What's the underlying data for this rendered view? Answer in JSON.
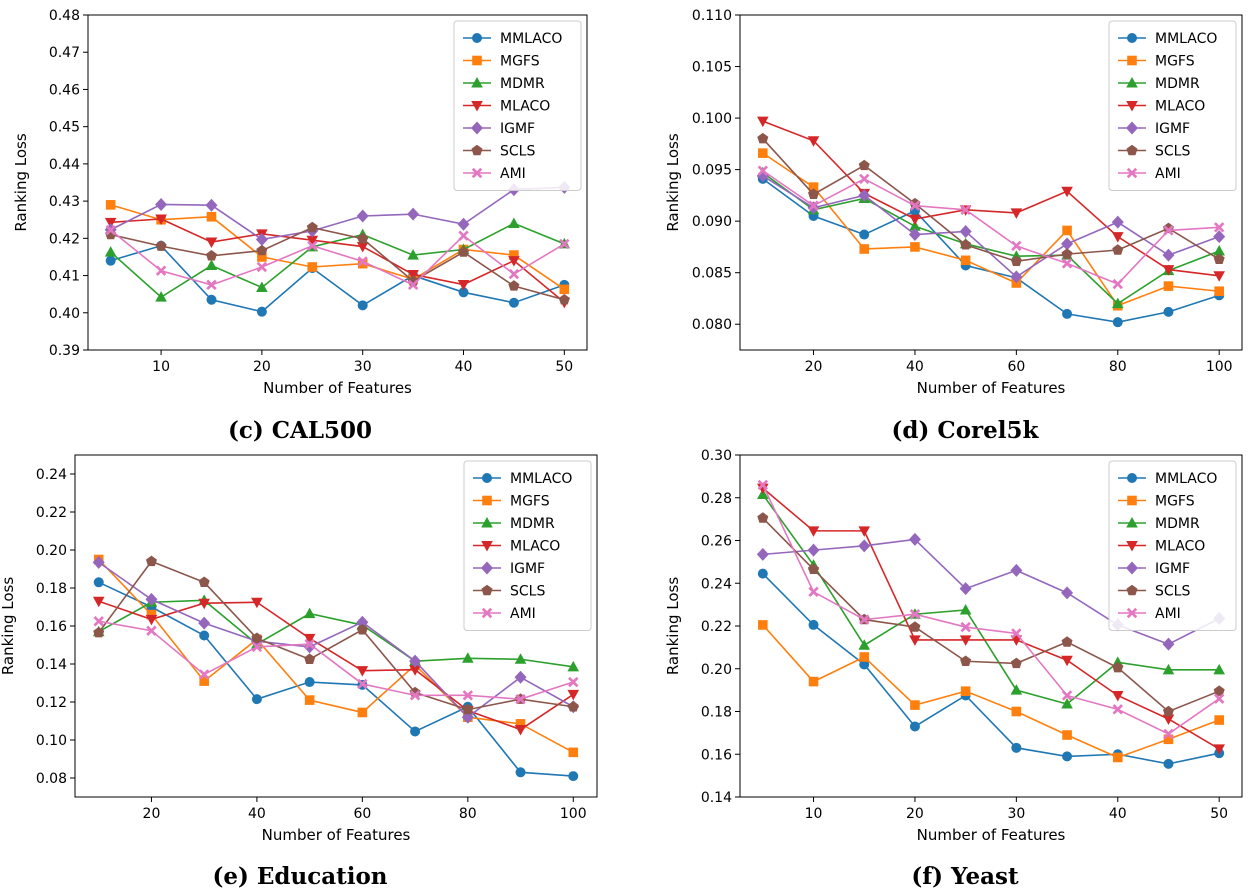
{
  "figure": {
    "legend_position": "upper right",
    "grid": false,
    "series_colors": {
      "MMLACO": "#1f77b4",
      "MGFS": "#ff7f0e",
      "MDMR": "#2ca02c",
      "MLACO": "#d62728",
      "IGMF": "#9467bd",
      "SCLS": "#8c564b",
      "AMI": "#e377c2"
    },
    "series_markers": {
      "MMLACO": "circle",
      "MGFS": "square",
      "MDMR": "triangle-up",
      "MLACO": "triangle-down",
      "IGMF": "diamond",
      "SCLS": "pentagon",
      "AMI": "x-filled"
    }
  },
  "chart_data": [
    {
      "type": "line",
      "caption": "(c) CAL500",
      "xlabel": "Number of Features",
      "ylabel": "Ranking Loss",
      "xlim": [
        2.75,
        52.25
      ],
      "ylim": [
        0.39,
        0.48
      ],
      "xticks": [
        10,
        20,
        30,
        40,
        50
      ],
      "yticks": [
        0.39,
        0.4,
        0.41,
        0.42,
        0.43,
        0.44,
        0.45,
        0.46,
        0.47,
        0.48
      ],
      "ytick_labels": [
        "0.39",
        "0.40",
        "0.41",
        "0.42",
        "0.43",
        "0.44",
        "0.45",
        "0.46",
        "0.47",
        "0.48"
      ],
      "x": [
        5,
        10,
        15,
        20,
        25,
        30,
        35,
        40,
        45,
        50
      ],
      "series": [
        {
          "name": "MMLACO",
          "values": [
            0.414,
            0.418,
            0.4035,
            0.4003,
            0.412,
            0.402,
            0.41,
            0.4055,
            0.4027,
            0.4075
          ]
        },
        {
          "name": "MGFS",
          "values": [
            0.429,
            0.425,
            0.4258,
            0.415,
            0.4123,
            0.4132,
            0.409,
            0.417,
            0.4155,
            0.4063
          ]
        },
        {
          "name": "MDMR",
          "values": [
            0.4163,
            0.4042,
            0.4127,
            0.4068,
            0.4177,
            0.421,
            0.4155,
            0.417,
            0.424,
            0.4185
          ]
        },
        {
          "name": "MLACO",
          "values": [
            0.4243,
            0.4252,
            0.419,
            0.4212,
            0.4195,
            0.4178,
            0.4103,
            0.4076,
            0.414,
            0.4028
          ]
        },
        {
          "name": "IGMF",
          "values": [
            0.4223,
            0.4291,
            0.4289,
            0.4197,
            0.422,
            0.426,
            0.4265,
            0.4238,
            0.4331,
            0.4337
          ]
        },
        {
          "name": "SCLS",
          "values": [
            0.421,
            0.4179,
            0.4153,
            0.4167,
            0.4229,
            0.4199,
            0.4085,
            0.4163,
            0.4072,
            0.4035
          ]
        },
        {
          "name": "AMI",
          "values": [
            0.4222,
            0.4113,
            0.4075,
            0.4123,
            0.418,
            0.4138,
            0.4075,
            0.4207,
            0.4104,
            0.4185
          ]
        }
      ]
    },
    {
      "type": "line",
      "caption": "(d) Corel5k",
      "xlabel": "Number of Features",
      "ylabel": "Ranking Loss",
      "xlim": [
        5.5,
        104.5
      ],
      "ylim": [
        0.0775,
        0.11
      ],
      "xticks": [
        20,
        40,
        60,
        80,
        100
      ],
      "yticks": [
        0.08,
        0.085,
        0.09,
        0.095,
        0.1,
        0.105,
        0.11
      ],
      "ytick_labels": [
        "0.080",
        "0.085",
        "0.090",
        "0.095",
        "0.100",
        "0.105",
        "0.110"
      ],
      "x": [
        10,
        20,
        30,
        40,
        50,
        60,
        70,
        80,
        90,
        100
      ],
      "series": [
        {
          "name": "MMLACO",
          "values": [
            0.0941,
            0.0905,
            0.0887,
            0.091,
            0.0857,
            0.0845,
            0.081,
            0.0802,
            0.0812,
            0.0828
          ]
        },
        {
          "name": "MGFS",
          "values": [
            0.0966,
            0.0933,
            0.0873,
            0.0875,
            0.0862,
            0.084,
            0.0891,
            0.0818,
            0.0837,
            0.0832
          ]
        },
        {
          "name": "MDMR",
          "values": [
            0.0947,
            0.0911,
            0.0922,
            0.0895,
            0.0878,
            0.0866,
            0.0867,
            0.082,
            0.0852,
            0.0871
          ]
        },
        {
          "name": "MLACO",
          "values": [
            0.0997,
            0.0978,
            0.0927,
            0.0902,
            0.0911,
            0.0908,
            0.0929,
            0.0885,
            0.0853,
            0.0847
          ]
        },
        {
          "name": "IGMF",
          "values": [
            0.0944,
            0.0913,
            0.0925,
            0.0887,
            0.089,
            0.0846,
            0.0878,
            0.0899,
            0.0867,
            0.0885
          ]
        },
        {
          "name": "SCLS",
          "values": [
            0.098,
            0.0926,
            0.0954,
            0.0917,
            0.0877,
            0.0861,
            0.0868,
            0.0872,
            0.0893,
            0.0863
          ]
        },
        {
          "name": "AMI",
          "values": [
            0.0949,
            0.0915,
            0.0941,
            0.0915,
            0.0911,
            0.0876,
            0.0859,
            0.0839,
            0.0891,
            0.0894
          ]
        }
      ]
    },
    {
      "type": "line",
      "caption": "(e) Education",
      "xlabel": "Number of Features",
      "ylabel": "Ranking Loss",
      "xlim": [
        5.5,
        104.5
      ],
      "ylim": [
        0.07,
        0.25
      ],
      "xticks": [
        20,
        40,
        60,
        80,
        100
      ],
      "yticks": [
        0.08,
        0.1,
        0.12,
        0.14,
        0.16,
        0.18,
        0.2,
        0.22,
        0.24
      ],
      "ytick_labels": [
        "0.08",
        "0.10",
        "0.12",
        "0.14",
        "0.16",
        "0.18",
        "0.20",
        "0.22",
        "0.24"
      ],
      "x": [
        10,
        20,
        30,
        40,
        50,
        60,
        70,
        80,
        90,
        100
      ],
      "series": [
        {
          "name": "MMLACO",
          "values": [
            0.183,
            0.17,
            0.155,
            0.1215,
            0.1305,
            0.129,
            0.1045,
            0.1175,
            0.083,
            0.081
          ]
        },
        {
          "name": "MGFS",
          "values": [
            0.195,
            0.166,
            0.131,
            0.153,
            0.121,
            0.1145,
            0.1395,
            0.112,
            0.1085,
            0.0935
          ]
        },
        {
          "name": "MDMR",
          "values": [
            0.157,
            0.1725,
            0.1735,
            0.1505,
            0.1665,
            0.1605,
            0.1415,
            0.143,
            0.1425,
            0.1385
          ]
        },
        {
          "name": "MLACO",
          "values": [
            0.173,
            0.1635,
            0.172,
            0.1725,
            0.1535,
            0.1365,
            0.137,
            0.1155,
            0.1055,
            0.124
          ]
        },
        {
          "name": "IGMF",
          "values": [
            0.1935,
            0.174,
            0.1615,
            0.152,
            0.149,
            0.162,
            0.1415,
            0.112,
            0.133,
            0.1175
          ]
        },
        {
          "name": "SCLS",
          "values": [
            0.1565,
            0.194,
            0.183,
            0.1535,
            0.1425,
            0.158,
            0.125,
            0.116,
            0.1215,
            0.1175
          ]
        },
        {
          "name": "AMI",
          "values": [
            0.1625,
            0.1575,
            0.1345,
            0.149,
            0.1505,
            0.1295,
            0.1235,
            0.1235,
            0.1215,
            0.1305
          ]
        }
      ]
    },
    {
      "type": "line",
      "caption": "(f) Yeast",
      "xlabel": "Number of Features",
      "ylabel": "Ranking Loss",
      "xlim": [
        2.75,
        52.25
      ],
      "ylim": [
        0.14,
        0.3
      ],
      "xticks": [
        10,
        20,
        30,
        40,
        50
      ],
      "yticks": [
        0.14,
        0.16,
        0.18,
        0.2,
        0.22,
        0.24,
        0.26,
        0.28,
        0.3
      ],
      "ytick_labels": [
        "0.14",
        "0.16",
        "0.18",
        "0.20",
        "0.22",
        "0.24",
        "0.26",
        "0.28",
        "0.30"
      ],
      "x": [
        5,
        10,
        15,
        20,
        25,
        30,
        35,
        40,
        45,
        50
      ],
      "series": [
        {
          "name": "MMLACO",
          "values": [
            0.2445,
            0.2205,
            0.202,
            0.173,
            0.1875,
            0.163,
            0.159,
            0.16,
            0.1555,
            0.1605
          ]
        },
        {
          "name": "MGFS",
          "values": [
            0.2205,
            0.194,
            0.2055,
            0.183,
            0.1895,
            0.18,
            0.169,
            0.1585,
            0.167,
            0.176
          ]
        },
        {
          "name": "MDMR",
          "values": [
            0.2815,
            0.2485,
            0.211,
            0.2255,
            0.2275,
            0.19,
            0.1835,
            0.203,
            0.1995,
            0.1995
          ]
        },
        {
          "name": "MLACO",
          "values": [
            0.2845,
            0.2645,
            0.2645,
            0.2135,
            0.2135,
            0.2135,
            0.204,
            0.1875,
            0.1765,
            0.1625
          ]
        },
        {
          "name": "IGMF",
          "values": [
            0.2535,
            0.2555,
            0.2575,
            0.2605,
            0.2375,
            0.246,
            0.2355,
            0.2205,
            0.2115,
            0.2235
          ]
        },
        {
          "name": "SCLS",
          "values": [
            0.2705,
            0.2465,
            0.223,
            0.2195,
            0.2035,
            0.2025,
            0.2125,
            0.2005,
            0.18,
            0.1895
          ]
        },
        {
          "name": "AMI",
          "values": [
            0.286,
            0.236,
            0.223,
            0.2255,
            0.2195,
            0.2165,
            0.1875,
            0.181,
            0.1695,
            0.186
          ]
        }
      ]
    }
  ]
}
